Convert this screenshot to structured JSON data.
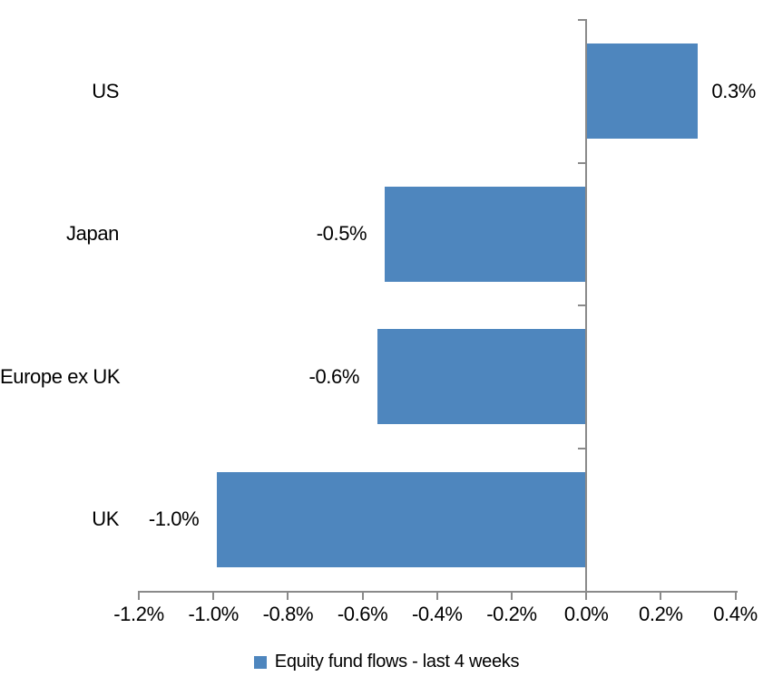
{
  "chart_data": {
    "type": "bar",
    "orientation": "horizontal",
    "title": "",
    "xlabel": "",
    "ylabel": "",
    "categories": [
      "US",
      "Japan",
      "Europe ex UK",
      "UK"
    ],
    "series": [
      {
        "name": "Equity fund flows - last 4 weeks",
        "values": [
          0.3,
          -0.54,
          -0.56,
          -0.99
        ],
        "data_labels": [
          "0.3%",
          "-0.5%",
          "-0.6%",
          "-1.0%"
        ]
      }
    ],
    "series_name": "Equity fund flows - last 4 weeks",
    "xlim": [
      -1.2,
      0.4
    ],
    "x_tick_values": [
      -1.2,
      -1.0,
      -0.8,
      -0.6,
      -0.4,
      -0.2,
      0.0,
      0.2,
      0.4
    ],
    "x_tick_labels": [
      "-1.2%",
      "-1.0%",
      "-0.8%",
      "-0.6%",
      "-0.4%",
      "-0.2%",
      "0.0%",
      "0.2%",
      "0.4%"
    ],
    "grid": false,
    "legend_position": "bottom",
    "bar_color": "#4E86BE",
    "axis_color": "#8A8A8A",
    "text_color": "#000000",
    "background_color": "#FFFFFF"
  }
}
